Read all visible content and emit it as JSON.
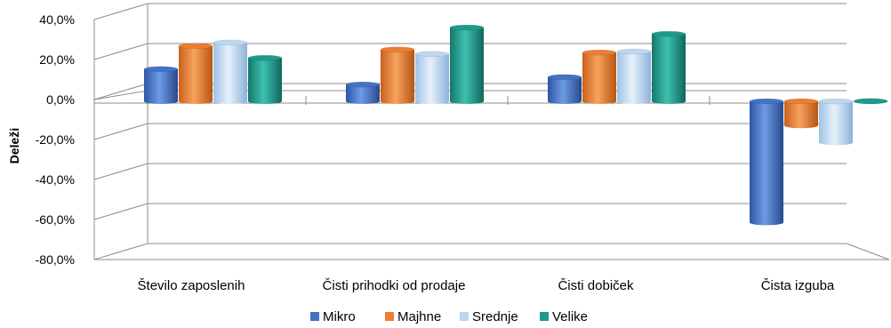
{
  "chart_data": {
    "type": "bar",
    "style": "3d-cylinder-clustered",
    "ylabel": "Deleži",
    "categories": [
      "Število zaposlenih",
      "Čisti prihodki od prodaje",
      "Čisti dobiček",
      "Čista izguba"
    ],
    "series": [
      {
        "name": "Mikro",
        "color": "#4472C4",
        "values": [
          15.2,
          7.5,
          11.2,
          -61.5
        ]
      },
      {
        "name": "Majhne",
        "color": "#ED7D31",
        "values": [
          26.8,
          25.0,
          23.5,
          -13.0
        ]
      },
      {
        "name": "Srednje",
        "color": "#BDD7EE",
        "values": [
          28.5,
          22.8,
          24.0,
          -21.5
        ]
      },
      {
        "name": "Velike",
        "color": "#1E9A8C",
        "values": [
          20.8,
          36.0,
          32.8,
          -0.8
        ]
      }
    ],
    "y_ticks": [
      "40,0%",
      "20,0%",
      "0,0%",
      "-20,0%",
      "-40,0%",
      "-60,0%",
      "-80,0%"
    ],
    "ylim": [
      -80,
      40
    ],
    "grid": true,
    "legend_position": "bottom"
  }
}
